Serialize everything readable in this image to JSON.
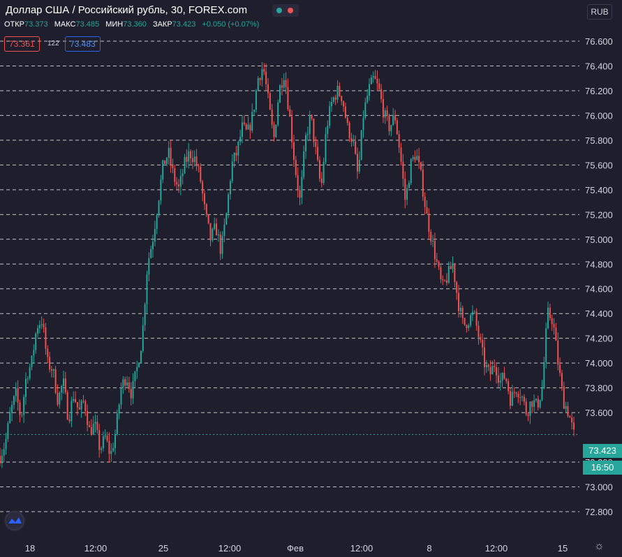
{
  "header": {
    "title": "Доллар США / Российский рубль, 30, FOREX.com",
    "ohlc": [
      {
        "label": "ОТКР",
        "value": "73.373"
      },
      {
        "label": "МАКС",
        "value": "73.485"
      },
      {
        "label": "МИН",
        "value": "73.360"
      },
      {
        "label": "ЗАКР",
        "value": "73.423"
      }
    ],
    "change": "+0.050 (+0.07%)",
    "bid": "73.361",
    "spread": "122",
    "ask": "73.483"
  },
  "currency_button": "RUB",
  "last_price_tag": "73.423",
  "countdown_tag": "16:50",
  "colors": {
    "up": "#26a69a",
    "down": "#ef5350",
    "background": "#1e1e2d",
    "grid": "#ffffff"
  },
  "icons": {
    "logo": "tradingview-logo-icon",
    "settings": "gear-icon"
  },
  "chart_data": {
    "type": "candlestick",
    "title": "Доллар США / Российский рубль, 30, FOREX.com",
    "ylim": [
      72.8,
      76.7
    ],
    "y_ticks": [
      "76.600",
      "76.400",
      "76.200",
      "76.000",
      "75.800",
      "75.600",
      "75.400",
      "75.200",
      "75.000",
      "74.800",
      "74.600",
      "74.400",
      "74.200",
      "74.000",
      "73.800",
      "73.600",
      "73.200",
      "73.000",
      "72.800"
    ],
    "x_ticks": [
      "18",
      "12:00",
      "25",
      "12:00",
      "Фев",
      "12:00",
      "8",
      "12:00",
      "15"
    ],
    "last_price": 73.423,
    "grid": "horizontal dashed",
    "path": [
      73.25,
      73.35,
      73.6,
      73.75,
      73.55,
      73.9,
      74.0,
      74.3,
      74.35,
      74.0,
      73.95,
      73.7,
      73.85,
      73.55,
      73.75,
      73.6,
      73.7,
      73.45,
      73.5,
      73.3,
      73.4,
      73.25,
      73.45,
      73.8,
      73.9,
      73.75,
      73.95,
      74.2,
      74.8,
      75.0,
      75.3,
      75.6,
      75.7,
      75.5,
      75.4,
      75.6,
      75.7,
      75.65,
      75.5,
      75.2,
      75.0,
      75.1,
      74.9,
      75.2,
      75.6,
      75.7,
      75.9,
      75.85,
      76.0,
      76.3,
      76.4,
      76.1,
      75.8,
      76.2,
      76.35,
      76.0,
      75.6,
      75.3,
      75.8,
      76.0,
      75.7,
      75.4,
      75.9,
      76.1,
      76.2,
      76.15,
      75.9,
      75.8,
      75.5,
      76.0,
      76.2,
      76.3,
      76.2,
      76.0,
      75.9,
      76.0,
      75.7,
      75.3,
      75.6,
      75.7,
      75.5,
      75.2,
      75.0,
      74.8,
      74.6,
      74.7,
      74.8,
      74.5,
      74.3,
      74.35,
      74.4,
      74.2,
      74.0,
      73.9,
      74.0,
      73.85,
      73.9,
      73.7,
      73.8,
      73.75,
      73.6,
      73.7,
      73.65,
      73.8,
      74.4,
      74.35,
      74.0,
      73.7,
      73.6,
      73.42
    ]
  }
}
